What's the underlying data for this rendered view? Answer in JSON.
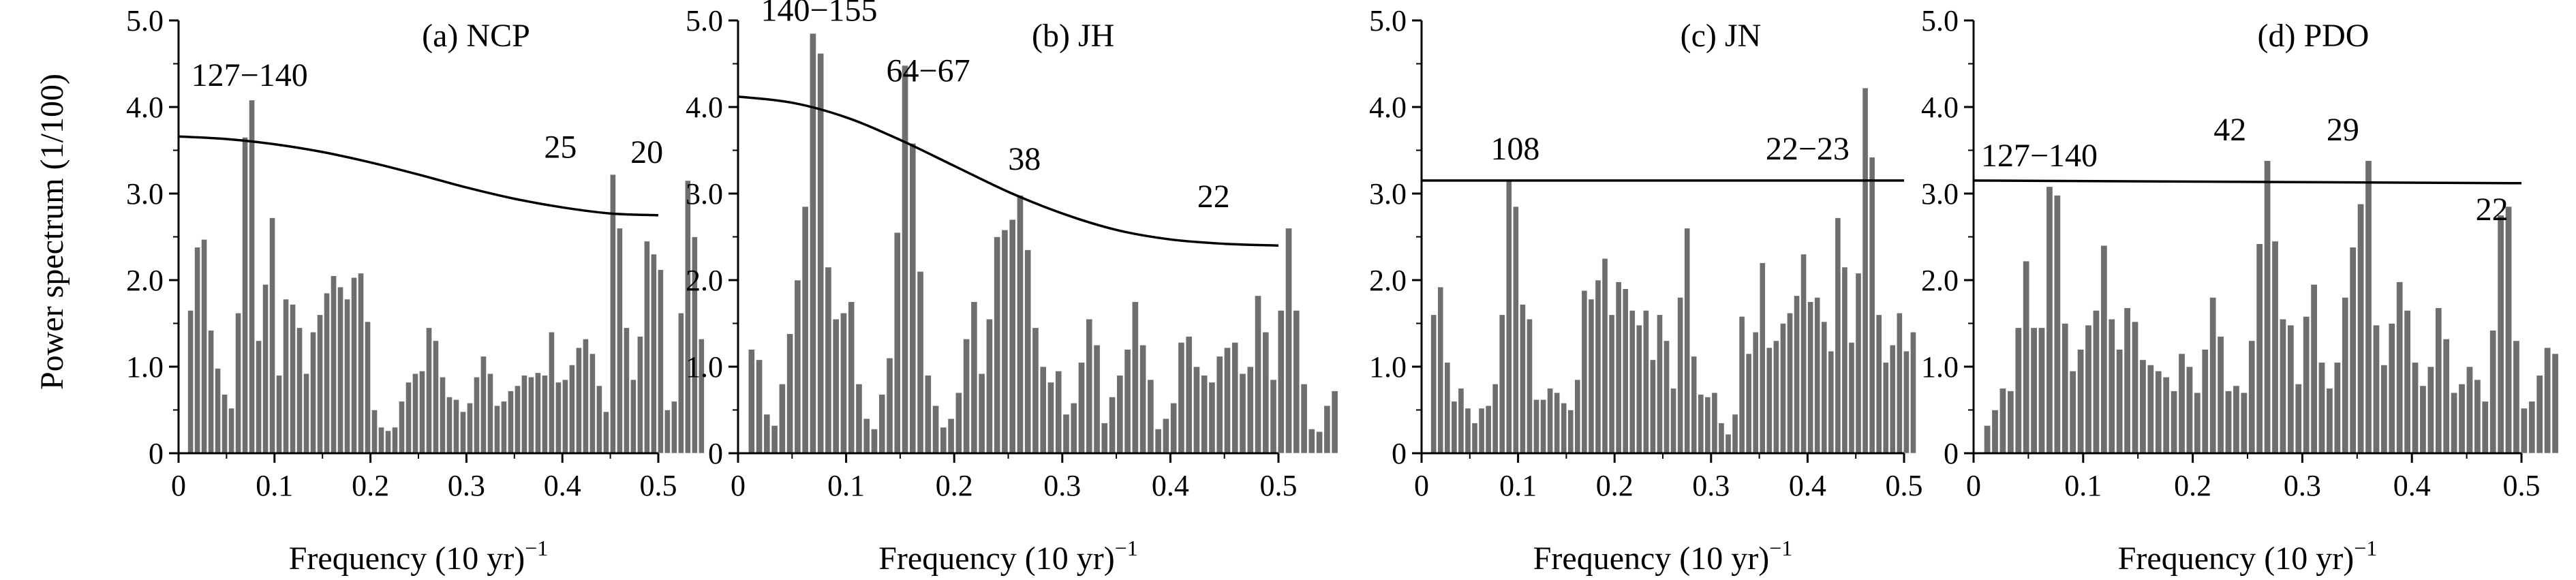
{
  "figure": {
    "ylabel": "Power spectrum (1/100)",
    "xlabel": "Frequency (10 yr)",
    "xlabel_sup": "−1"
  },
  "chart_data": [
    {
      "type": "bar",
      "title": "(a) NCP",
      "xlim": [
        0,
        0.5
      ],
      "ylim": [
        0,
        5.0
      ],
      "xticks": [
        "0",
        "0.1",
        "0.2",
        "0.3",
        "0.4",
        "0.5"
      ],
      "yticks": [
        "0",
        "1.0",
        "2.0",
        "3.0",
        "4.0",
        "5.0"
      ],
      "x_start": 0.0125,
      "x_step": 0.0071,
      "values": [
        1.65,
        2.38,
        2.47,
        1.42,
        0.98,
        0.68,
        0.52,
        1.62,
        3.65,
        4.08,
        1.3,
        1.95,
        2.72,
        0.9,
        1.78,
        1.72,
        1.45,
        0.92,
        1.4,
        1.6,
        1.85,
        2.05,
        1.92,
        1.78,
        2.03,
        2.08,
        1.52,
        0.5,
        0.3,
        0.26,
        0.3,
        0.6,
        0.82,
        0.92,
        0.95,
        1.45,
        1.3,
        0.88,
        0.65,
        0.62,
        0.48,
        0.58,
        0.88,
        1.12,
        0.92,
        0.55,
        0.6,
        0.72,
        0.78,
        0.9,
        0.88,
        0.93,
        0.9,
        1.4,
        0.82,
        0.85,
        1.02,
        1.22,
        1.32,
        1.15,
        0.78,
        0.48,
        3.22,
        2.6,
        1.45,
        0.85,
        1.35,
        2.45,
        2.3,
        2.12,
        0.5,
        0.6,
        1.62,
        3.15,
        2.5,
        1.32
      ],
      "reference": {
        "x": [
          0,
          0.05,
          0.1,
          0.15,
          0.2,
          0.25,
          0.3,
          0.35,
          0.4,
          0.45,
          0.5
        ],
        "y": [
          3.66,
          3.63,
          3.57,
          3.48,
          3.36,
          3.22,
          3.07,
          2.94,
          2.84,
          2.77,
          2.75
        ]
      },
      "annotations": [
        {
          "text": "127−140",
          "x": 0.074,
          "y": 4.15
        },
        {
          "text": "25",
          "x": 0.398,
          "y": 3.32
        },
        {
          "text": "20",
          "x": 0.488,
          "y": 3.26
        }
      ]
    },
    {
      "type": "bar",
      "title": "(b) JH",
      "xlim": [
        0,
        0.5
      ],
      "ylim": [
        0,
        5.0
      ],
      "xticks": [
        "0",
        "0.1",
        "0.2",
        "0.3",
        "0.4",
        "0.5"
      ],
      "yticks": [
        "0",
        "1.0",
        "2.0",
        "3.0",
        "4.0",
        "5.0"
      ],
      "x_start": 0.0125,
      "x_step": 0.0071,
      "values": [
        1.2,
        1.08,
        0.45,
        0.32,
        0.8,
        1.38,
        2.0,
        2.85,
        4.85,
        4.62,
        2.15,
        1.55,
        1.62,
        1.75,
        0.8,
        0.4,
        0.28,
        0.68,
        1.1,
        2.55,
        4.48,
        3.58,
        2.1,
        0.9,
        0.55,
        0.3,
        0.4,
        0.7,
        1.32,
        1.75,
        0.92,
        1.55,
        2.5,
        2.58,
        2.7,
        2.98,
        2.35,
        1.45,
        1.0,
        0.82,
        0.95,
        0.45,
        0.58,
        1.05,
        1.55,
        1.25,
        0.35,
        0.65,
        0.9,
        1.2,
        1.75,
        1.25,
        0.85,
        0.28,
        0.4,
        0.58,
        1.28,
        1.35,
        1.0,
        0.9,
        0.82,
        1.12,
        1.22,
        1.28,
        0.92,
        1.0,
        1.82,
        1.4,
        0.85,
        1.65,
        2.6,
        1.65,
        0.8,
        0.28,
        0.25,
        0.55,
        0.72
      ],
      "reference": {
        "x": [
          0,
          0.05,
          0.1,
          0.15,
          0.2,
          0.25,
          0.3,
          0.35,
          0.4,
          0.45,
          0.5
        ],
        "y": [
          4.12,
          4.05,
          3.88,
          3.62,
          3.32,
          3.02,
          2.77,
          2.58,
          2.47,
          2.42,
          2.4
        ]
      },
      "annotations": [
        {
          "text": "140−155",
          "x": 0.075,
          "y": 4.9
        },
        {
          "text": "64−67",
          "x": 0.176,
          "y": 4.2
        },
        {
          "text": "38",
          "x": 0.265,
          "y": 3.18
        },
        {
          "text": "22",
          "x": 0.44,
          "y": 2.75
        }
      ]
    },
    {
      "type": "bar",
      "title": "(c) JN",
      "xlim": [
        0,
        0.5
      ],
      "ylim": [
        0,
        5.0
      ],
      "xticks": [
        "0",
        "0.1",
        "0.2",
        "0.3",
        "0.4",
        "0.5"
      ],
      "yticks": [
        "0",
        "1.0",
        "2.0",
        "3.0",
        "4.0",
        "5.0"
      ],
      "x_start": 0.0125,
      "x_step": 0.0071,
      "values": [
        1.6,
        1.92,
        1.05,
        0.6,
        0.75,
        0.52,
        0.35,
        0.52,
        0.55,
        0.8,
        1.6,
        3.15,
        2.85,
        1.72,
        1.55,
        0.62,
        0.62,
        0.75,
        0.7,
        0.58,
        0.5,
        0.85,
        1.88,
        1.78,
        2.0,
        2.25,
        1.6,
        1.98,
        1.9,
        1.65,
        1.48,
        1.65,
        1.08,
        1.6,
        1.3,
        0.75,
        1.8,
        2.6,
        1.12,
        0.68,
        0.65,
        0.7,
        0.35,
        0.22,
        0.45,
        1.58,
        1.15,
        1.4,
        2.2,
        1.22,
        1.3,
        1.5,
        1.62,
        1.82,
        2.3,
        1.75,
        1.8,
        1.52,
        1.18,
        2.72,
        2.15,
        1.28,
        2.08,
        4.22,
        3.42,
        1.6,
        1.05,
        1.25,
        1.62,
        1.18,
        1.4
      ],
      "reference": {
        "x": [
          0,
          0.5
        ],
        "y": [
          3.15,
          3.15
        ]
      },
      "annotations": [
        {
          "text": "108",
          "x": 0.097,
          "y": 3.3
        },
        {
          "text": "22−23",
          "x": 0.4,
          "y": 3.3
        }
      ]
    },
    {
      "type": "bar",
      "title": "(d) PDO",
      "xlim": [
        0,
        0.5
      ],
      "ylim": [
        0,
        5.0
      ],
      "xticks": [
        "0",
        "0.1",
        "0.2",
        "0.3",
        "0.4",
        "0.5"
      ],
      "yticks": [
        "0",
        "1.0",
        "2.0",
        "3.0",
        "4.0",
        "5.0"
      ],
      "x_start": 0.0125,
      "x_step": 0.0071,
      "values": [
        0.32,
        0.5,
        0.75,
        0.72,
        1.45,
        2.22,
        1.45,
        1.45,
        3.08,
        2.98,
        1.5,
        0.95,
        1.2,
        1.48,
        1.65,
        2.4,
        1.55,
        1.2,
        1.68,
        1.52,
        1.08,
        1.02,
        0.95,
        0.88,
        0.72,
        1.15,
        1.0,
        0.7,
        1.2,
        1.8,
        1.35,
        0.72,
        0.78,
        0.7,
        1.3,
        2.42,
        3.38,
        2.45,
        1.55,
        1.48,
        0.8,
        1.58,
        1.95,
        1.05,
        0.75,
        1.05,
        1.8,
        2.38,
        2.88,
        3.38,
        1.48,
        1.02,
        1.5,
        1.98,
        1.65,
        1.05,
        0.78,
        1.0,
        1.68,
        1.32,
        0.7,
        0.8,
        1.0,
        0.85,
        0.6,
        1.42,
        2.75,
        2.85,
        1.3,
        0.52,
        0.6,
        0.9,
        1.22,
        1.15
      ],
      "reference": {
        "x": [
          0,
          0.5
        ],
        "y": [
          3.15,
          3.12
        ]
      },
      "annotations": [
        {
          "text": "127−140",
          "x": 0.06,
          "y": 3.22
        },
        {
          "text": "42",
          "x": 0.234,
          "y": 3.52
        },
        {
          "text": "29",
          "x": 0.337,
          "y": 3.52
        },
        {
          "text": "22",
          "x": 0.473,
          "y": 2.6
        }
      ]
    }
  ],
  "colors": {
    "bar_fill": "#6e6e6e",
    "bar_stroke": "#ffffff",
    "reference_line": "#000000",
    "axis": "#000000"
  }
}
